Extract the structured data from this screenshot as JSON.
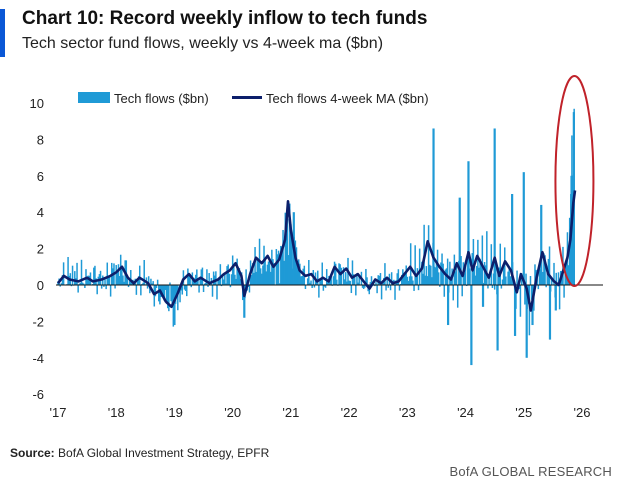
{
  "header": {
    "title": "Chart 10: Record weekly inflow to tech funds",
    "subtitle": "Tech sector fund flows, weekly vs 4-week ma ($bn)"
  },
  "footer": {
    "source_label": "Source:",
    "source_text": "BofA Global Investment Strategy, EPFR",
    "brand": "BofA GLOBAL RESEARCH"
  },
  "colors": {
    "accent": "#0a57d6",
    "weekly": "#1f9ad6",
    "ma": "#0c1f6b",
    "highlight": "#c0222a"
  },
  "chart_data": {
    "type": "bar",
    "xlabel": "",
    "ylabel": "",
    "ylim": [
      -6,
      10
    ],
    "x_ticks": [
      "'17",
      "'18",
      "'19",
      "'20",
      "'21",
      "'22",
      "'23",
      "'24",
      "'25",
      "'26"
    ],
    "y_ticks": [
      "10",
      "8",
      "6",
      "4",
      "2",
      "0",
      "-2",
      "-4",
      "-6"
    ],
    "legend_position": "top",
    "highlight": "red ellipse around the most recent weeks",
    "series": [
      {
        "name": "Tech flows ($bn)",
        "kind": "bar",
        "anchors": [
          [
            2017.0,
            0.2
          ],
          [
            2017.2,
            0.6
          ],
          [
            2017.4,
            0.3
          ],
          [
            2017.6,
            0.5
          ],
          [
            2017.8,
            0.2
          ],
          [
            2018.0,
            0.8
          ],
          [
            2018.1,
            1.0
          ],
          [
            2018.3,
            0.1
          ],
          [
            2018.5,
            0.4
          ],
          [
            2018.7,
            -0.5
          ],
          [
            2018.9,
            -0.9
          ],
          [
            2019.0,
            -1.2
          ],
          [
            2019.1,
            -0.4
          ],
          [
            2019.3,
            0.5
          ],
          [
            2019.5,
            0.3
          ],
          [
            2019.7,
            0.2
          ],
          [
            2019.9,
            0.6
          ],
          [
            2020.1,
            1.0
          ],
          [
            2020.2,
            -0.6
          ],
          [
            2020.4,
            1.5
          ],
          [
            2020.6,
            1.2
          ],
          [
            2020.8,
            1.3
          ],
          [
            2020.95,
            3.5
          ],
          [
            2021.05,
            2.3
          ],
          [
            2021.2,
            0.5
          ],
          [
            2021.4,
            0.3
          ],
          [
            2021.6,
            0.2
          ],
          [
            2021.8,
            0.8
          ],
          [
            2022.0,
            0.5
          ],
          [
            2022.2,
            0.2
          ],
          [
            2022.4,
            0.0
          ],
          [
            2022.6,
            0.3
          ],
          [
            2022.8,
            0.1
          ],
          [
            2023.0,
            0.8
          ],
          [
            2023.2,
            0.7
          ],
          [
            2023.3,
            1.5
          ],
          [
            2023.5,
            1.2
          ],
          [
            2023.6,
            0.8
          ],
          [
            2023.8,
            0.5
          ],
          [
            2024.0,
            0.8
          ],
          [
            2024.1,
            1.3
          ],
          [
            2024.3,
            1.5
          ],
          [
            2024.5,
            0.3
          ],
          [
            2024.6,
            1.0
          ],
          [
            2024.8,
            0.5
          ],
          [
            2024.9,
            -0.6
          ],
          [
            2025.0,
            0.2
          ],
          [
            2025.1,
            -1.5
          ],
          [
            2025.2,
            0.4
          ],
          [
            2025.4,
            1.2
          ],
          [
            2025.5,
            0.3
          ],
          [
            2025.6,
            0.0
          ],
          [
            2025.7,
            1.0
          ],
          [
            2025.75,
            1.5
          ],
          [
            2025.8,
            4.0
          ],
          [
            2025.85,
            9.2
          ],
          [
            2025.88,
            10.3
          ]
        ],
        "spikes": [
          [
            2019.0,
            -2.2
          ],
          [
            2020.2,
            -1.8
          ],
          [
            2021.05,
            4.0
          ],
          [
            2023.45,
            8.6
          ],
          [
            2023.7,
            -2.2
          ],
          [
            2023.9,
            4.8
          ],
          [
            2024.05,
            6.8
          ],
          [
            2024.1,
            -4.4
          ],
          [
            2024.3,
            -1.2
          ],
          [
            2024.5,
            8.6
          ],
          [
            2024.55,
            -3.6
          ],
          [
            2024.8,
            5.0
          ],
          [
            2024.85,
            -2.8
          ],
          [
            2025.0,
            6.2
          ],
          [
            2025.05,
            -4.0
          ],
          [
            2025.15,
            -2.2
          ],
          [
            2025.3,
            4.4
          ],
          [
            2025.45,
            -3.0
          ],
          [
            2025.55,
            -1.4
          ],
          [
            2025.82,
            6.0
          ],
          [
            2025.86,
            9.5
          ]
        ]
      },
      {
        "name": "Tech flows 4-week MA ($bn)",
        "kind": "line",
        "points": [
          [
            2017.0,
            0.1
          ],
          [
            2017.1,
            0.5
          ],
          [
            2017.2,
            0.3
          ],
          [
            2017.35,
            0.2
          ],
          [
            2017.5,
            0.4
          ],
          [
            2017.6,
            0.2
          ],
          [
            2017.75,
            0.3
          ],
          [
            2017.9,
            0.5
          ],
          [
            2018.0,
            0.7
          ],
          [
            2018.1,
            1.0
          ],
          [
            2018.2,
            0.4
          ],
          [
            2018.3,
            0.1
          ],
          [
            2018.4,
            0.4
          ],
          [
            2018.55,
            0.1
          ],
          [
            2018.65,
            -0.5
          ],
          [
            2018.75,
            -0.3
          ],
          [
            2018.85,
            -0.9
          ],
          [
            2018.95,
            -1.2
          ],
          [
            2019.05,
            -0.5
          ],
          [
            2019.15,
            0.3
          ],
          [
            2019.25,
            0.6
          ],
          [
            2019.35,
            0.2
          ],
          [
            2019.45,
            0.4
          ],
          [
            2019.6,
            0.1
          ],
          [
            2019.75,
            0.3
          ],
          [
            2019.85,
            0.6
          ],
          [
            2019.95,
            0.8
          ],
          [
            2020.05,
            1.2
          ],
          [
            2020.15,
            0.5
          ],
          [
            2020.2,
            -0.6
          ],
          [
            2020.3,
            0.6
          ],
          [
            2020.4,
            1.5
          ],
          [
            2020.5,
            1.2
          ],
          [
            2020.6,
            1.6
          ],
          [
            2020.7,
            1.0
          ],
          [
            2020.8,
            1.4
          ],
          [
            2020.9,
            2.5
          ],
          [
            2020.95,
            4.6
          ],
          [
            2021.0,
            3.0
          ],
          [
            2021.08,
            1.5
          ],
          [
            2021.15,
            0.8
          ],
          [
            2021.25,
            0.5
          ],
          [
            2021.35,
            0.6
          ],
          [
            2021.45,
            0.2
          ],
          [
            2021.55,
            0.4
          ],
          [
            2021.65,
            0.2
          ],
          [
            2021.75,
            1.0
          ],
          [
            2021.85,
            0.6
          ],
          [
            2021.95,
            0.9
          ],
          [
            2022.05,
            0.4
          ],
          [
            2022.15,
            0.6
          ],
          [
            2022.25,
            0.2
          ],
          [
            2022.35,
            -0.2
          ],
          [
            2022.45,
            0.3
          ],
          [
            2022.55,
            0.1
          ],
          [
            2022.65,
            0.4
          ],
          [
            2022.75,
            0.1
          ],
          [
            2022.85,
            0.2
          ],
          [
            2022.95,
            0.6
          ],
          [
            2023.05,
            1.0
          ],
          [
            2023.15,
            0.5
          ],
          [
            2023.25,
            0.9
          ],
          [
            2023.35,
            2.4
          ],
          [
            2023.45,
            1.5
          ],
          [
            2023.55,
            1.0
          ],
          [
            2023.65,
            0.6
          ],
          [
            2023.75,
            0.3
          ],
          [
            2023.85,
            1.2
          ],
          [
            2023.95,
            0.5
          ],
          [
            2024.05,
            1.8
          ],
          [
            2024.12,
            0.8
          ],
          [
            2024.2,
            1.6
          ],
          [
            2024.3,
            1.0
          ],
          [
            2024.4,
            0.4
          ],
          [
            2024.5,
            1.5
          ],
          [
            2024.58,
            0.5
          ],
          [
            2024.68,
            1.3
          ],
          [
            2024.78,
            0.8
          ],
          [
            2024.88,
            -0.4
          ],
          [
            2024.95,
            0.6
          ],
          [
            2025.05,
            -0.2
          ],
          [
            2025.12,
            -1.4
          ],
          [
            2025.22,
            0.4
          ],
          [
            2025.32,
            1.8
          ],
          [
            2025.42,
            0.6
          ],
          [
            2025.52,
            0.2
          ],
          [
            2025.6,
            0.0
          ],
          [
            2025.68,
            0.8
          ],
          [
            2025.75,
            1.5
          ],
          [
            2025.8,
            2.5
          ],
          [
            2025.85,
            4.5
          ],
          [
            2025.88,
            5.2
          ]
        ]
      }
    ]
  }
}
